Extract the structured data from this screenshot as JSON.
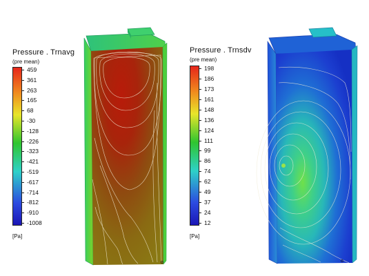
{
  "legends": [
    {
      "title": "Pressure . Trnavg",
      "subtitle": "(pre  mean)",
      "unit": "[Pa]",
      "ticks": [
        "459",
        "361",
        "263",
        "165",
        "68",
        "-30",
        "-128",
        "-226",
        "-323",
        "-421",
        "-519",
        "-617",
        "-714",
        "-812",
        "-910",
        "-1008"
      ]
    },
    {
      "title": "Pressure . Trnsdv",
      "subtitle": "(pre  mean)",
      "unit": "[Pa]",
      "ticks": [
        "198",
        "186",
        "173",
        "161",
        "148",
        "136",
        "124",
        "111",
        "99",
        "86",
        "74",
        "62",
        "49",
        "37",
        "24",
        "12"
      ]
    }
  ],
  "colors": {
    "high": "#e6261b",
    "orange": "#f08a1e",
    "yellow": "#e8e52a",
    "green": "#2fc52f",
    "cyan": "#2ed1c8",
    "blue": "#2c4be0",
    "navy": "#1b16b6",
    "contour": "#f1ecd6"
  },
  "models": [
    {
      "field": "average-pressure",
      "dominant_color": "dark-red-to-olive"
    },
    {
      "field": "std-dev-pressure",
      "dominant_color": "blue-to-green"
    }
  ],
  "axis_marker": "o"
}
